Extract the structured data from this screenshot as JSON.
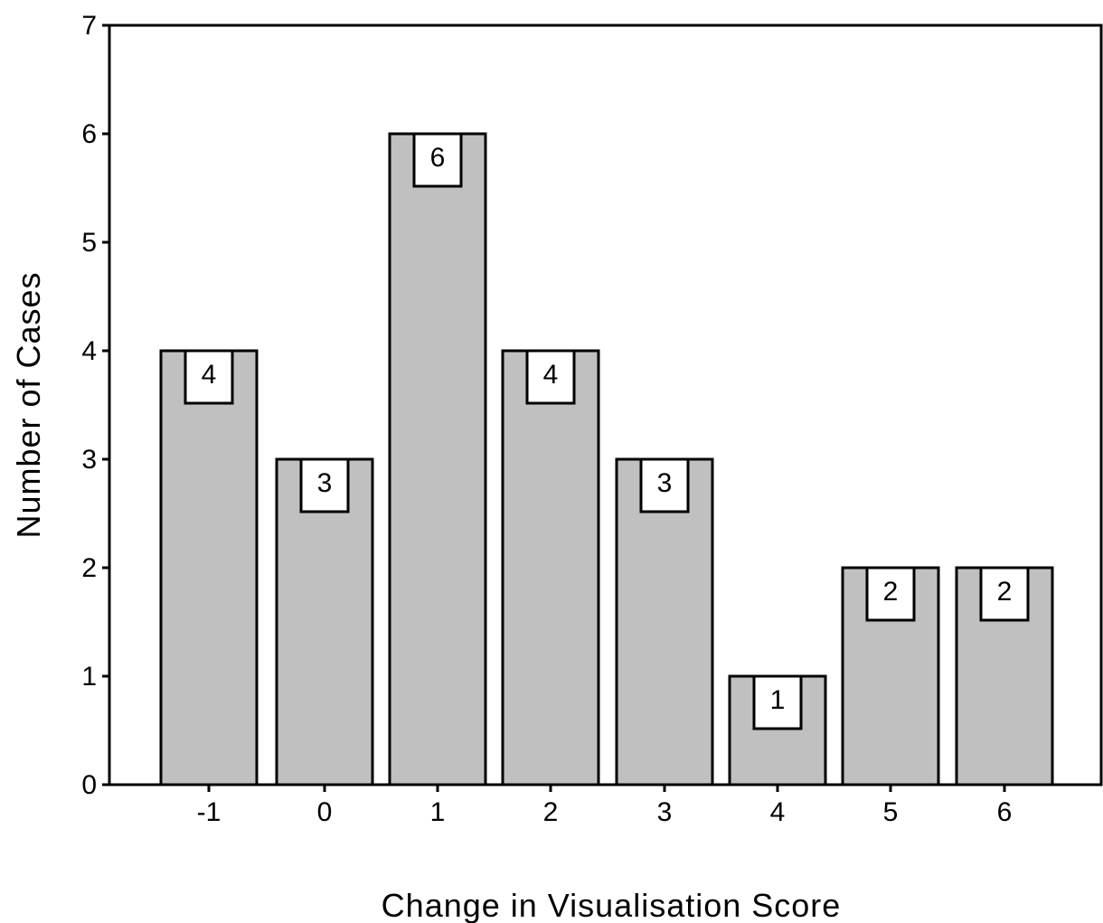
{
  "chart_data": {
    "type": "bar",
    "categories": [
      "-1",
      "0",
      "1",
      "2",
      "3",
      "4",
      "5",
      "6"
    ],
    "values": [
      4,
      3,
      6,
      4,
      3,
      1,
      2,
      2
    ],
    "data_labels": [
      "4",
      "3",
      "6",
      "4",
      "3",
      "1",
      "2",
      "2"
    ],
    "title": "",
    "xlabel": "Change in Visualisation Score",
    "ylabel": "Number of Cases",
    "ylim": [
      0,
      7
    ],
    "yticks": [
      "0",
      "1",
      "2",
      "3",
      "4",
      "5",
      "6",
      "7"
    ],
    "grid": false,
    "legend": "none",
    "colors": {
      "bar_fill": "#c0c0c0",
      "bar_stroke": "#000000",
      "label_box_fill": "#ffffff",
      "axis": "#000000"
    }
  }
}
